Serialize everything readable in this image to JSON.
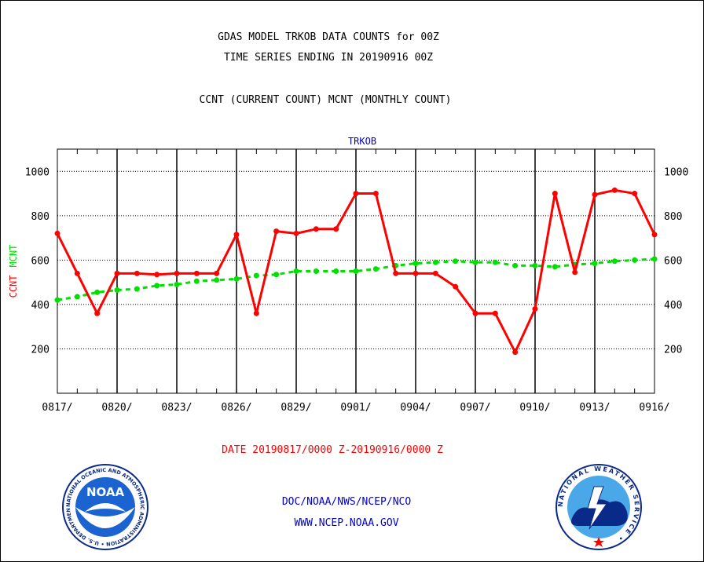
{
  "header": {
    "title_line1": "GDAS MODEL TRKOB DATA COUNTS for 00Z",
    "title_line2": "TIME SERIES ENDING IN 20190916 00Z",
    "subtitle": "CCNT (CURRENT COUNT) MCNT (MONTHLY COUNT)"
  },
  "footer": {
    "date_range": "DATE 20190817/0000 Z-20190916/0000 Z",
    "org": "DOC/NOAA/NWS/NCEP/NCO",
    "url": "WWW.NCEP.NOAA.GOV"
  },
  "logos": {
    "noaa_label": "NOAA",
    "noaa_ring_text": "NATIONAL OCEANIC AND ATMOSPHERIC ADMINISTRATION • U.S. DEPARTMENT OF COMMERCE •",
    "nws_ring_text": "NATIONAL WEATHER SERVICE •"
  },
  "colors": {
    "ccnt": "#ff0000",
    "mcnt": "#00e000",
    "plot_label": "#0000cc",
    "footer_blue": "#0000cc",
    "footer_red": "#ff0000"
  },
  "chart_data": {
    "type": "line",
    "plot_label": "TRKOB",
    "ylabel_series": [
      "CCNT",
      "MCNT"
    ],
    "x_tick_labels": [
      "0817/",
      "0820/",
      "0823/",
      "0826/",
      "0829/",
      "0901/",
      "0904/",
      "0907/",
      "0910/",
      "0913/",
      "0916/"
    ],
    "x": [
      "0817",
      "0818",
      "0819",
      "0820",
      "0821",
      "0822",
      "0823",
      "0824",
      "0825",
      "0826",
      "0827",
      "0828",
      "0829",
      "0830",
      "0831",
      "0901",
      "0902",
      "0903",
      "0904",
      "0905",
      "0906",
      "0907",
      "0908",
      "0909",
      "0910",
      "0911",
      "0912",
      "0913",
      "0914",
      "0915",
      "0916"
    ],
    "y_ticks": [
      200,
      400,
      600,
      800,
      1000
    ],
    "ylim": [
      0,
      1100
    ],
    "grid": true,
    "series": [
      {
        "name": "CCNT",
        "values": [
          720,
          540,
          360,
          540,
          540,
          535,
          540,
          540,
          540,
          715,
          360,
          730,
          720,
          740,
          740,
          900,
          900,
          540,
          540,
          540,
          480,
          360,
          360,
          185,
          380,
          900,
          545,
          895,
          915,
          900,
          715
        ]
      },
      {
        "name": "MCNT",
        "values": [
          420,
          435,
          455,
          465,
          470,
          485,
          490,
          505,
          510,
          515,
          530,
          535,
          550,
          550,
          550,
          550,
          560,
          575,
          585,
          590,
          595,
          590,
          590,
          575,
          575,
          570,
          580,
          585,
          595,
          600,
          605
        ]
      }
    ]
  }
}
